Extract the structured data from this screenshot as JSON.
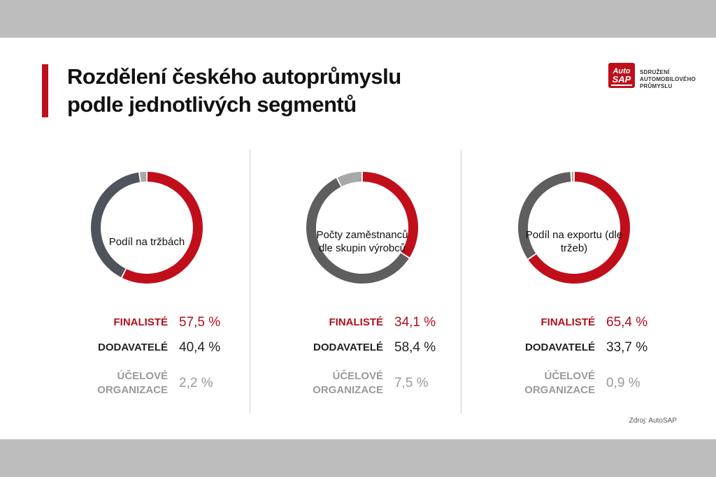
{
  "title": {
    "line1": "Rozdělení českého autoprůmyslu",
    "line2": "podle jednotlivých segmentů"
  },
  "logo": {
    "mark_line1": "Auto",
    "mark_line2": "SAP",
    "text_lines": [
      "SDRUŽENÍ",
      "AUTOMOBILOVÉHO",
      "PRŮMYSLU"
    ]
  },
  "source": "Zdroj: AutoSAP",
  "colors": {
    "finalists": "#c00f1b",
    "suppliers_dark": "#4e535c",
    "suppliers_gray": "#5e5e5e",
    "organizations": "#a8a8a8",
    "accent": "#c00f1b"
  },
  "chart_data": [
    {
      "type": "pie",
      "center_label": "Podíl na tržbách",
      "categories": [
        "FINALISTÉ",
        "DODAVATELÉ",
        "ÚČELOVÉ ORGANIZACE"
      ],
      "values": [
        57.5,
        40.4,
        2.2
      ],
      "value_labels": [
        "57,5 %",
        "40,4 %",
        "2,2 %"
      ],
      "colors": [
        "#c00f1b",
        "#4e535c",
        "#a8a8a8"
      ]
    },
    {
      "type": "pie",
      "center_label": "Počty zaměstnanců dle skupin výrobců",
      "categories": [
        "FINALISTÉ",
        "DODAVATELÉ",
        "ÚČELOVÉ ORGANIZACE"
      ],
      "values": [
        34.1,
        58.4,
        7.5
      ],
      "value_labels": [
        "34,1 %",
        "58,4 %",
        "7,5 %"
      ],
      "colors": [
        "#c00f1b",
        "#5e5e5e",
        "#a8a8a8"
      ]
    },
    {
      "type": "pie",
      "center_label": "Podíl na exportu (dle tržeb)",
      "categories": [
        "FINALISTÉ",
        "DODAVATELÉ",
        "ÚČELOVÉ ORGANIZACE"
      ],
      "values": [
        65.4,
        33.7,
        0.9
      ],
      "value_labels": [
        "65,4 %",
        "33,7 %",
        "0,9 %"
      ],
      "colors": [
        "#c00f1b",
        "#5e5e5e",
        "#a8a8a8"
      ]
    }
  ],
  "legend_labels": {
    "finalists": "FINALISTÉ",
    "suppliers": "DODAVATELÉ",
    "organizations_line1": "ÚČELOVÉ",
    "organizations_line2": "ORGANIZACE"
  }
}
